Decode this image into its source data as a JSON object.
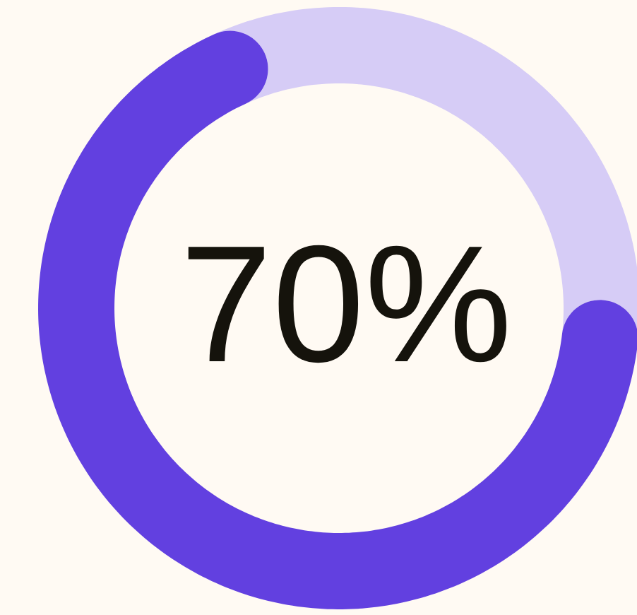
{
  "chart_data": {
    "type": "donut",
    "categories": [
      null,
      null
    ],
    "values": [
      70,
      30
    ],
    "colors": [
      "#6240e0",
      "#d6ccf6"
    ],
    "annotations": [
      "70%"
    ]
  }
}
